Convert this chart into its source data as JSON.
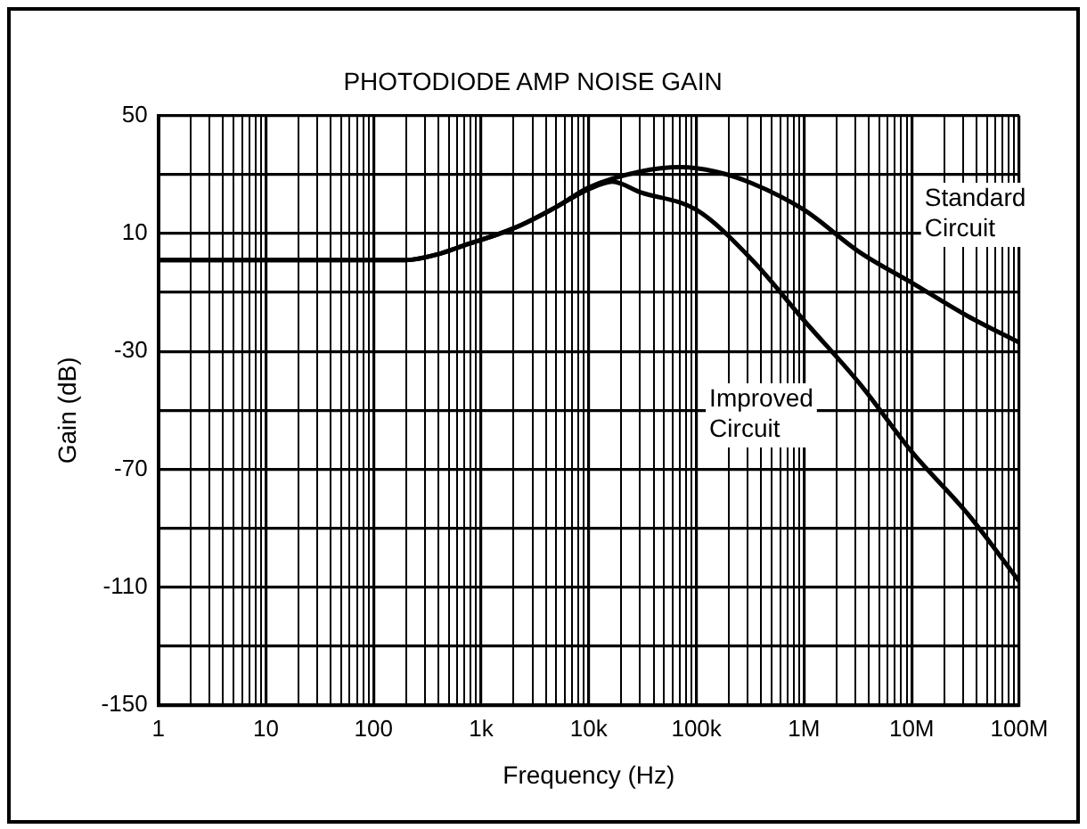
{
  "chart_data": {
    "type": "line",
    "title": "PHOTODIODE AMP NOISE GAIN",
    "xlabel": "Frequency (Hz)",
    "ylabel": "Gain (dB)",
    "log": "x",
    "grid": true,
    "legend": false,
    "marker": "none",
    "line_style": "solid",
    "xlim": [
      1,
      100000000
    ],
    "xticks": [
      1,
      10,
      100,
      {
        "value": 1000,
        "label": "1k"
      },
      {
        "value": 10000,
        "label": "10k"
      },
      {
        "value": 100000,
        "label": "100k"
      },
      {
        "value": 1000000,
        "label": "1M"
      },
      {
        "value": 10000000,
        "label": "10M"
      },
      {
        "value": 100000000,
        "label": "100M"
      }
    ],
    "ylim": [
      -150,
      50
    ],
    "yticks": [
      -150,
      {
        "value": -130,
        "label": null
      },
      -110,
      {
        "value": -90,
        "label": null
      },
      -70,
      {
        "value": -50,
        "label": null
      },
      -30,
      {
        "value": -10,
        "label": null
      },
      10,
      {
        "value": 30,
        "label": null
      },
      50
    ],
    "series": [
      {
        "name": "Standard Circuit",
        "color": "#000000",
        "x": [
          1,
          10,
          100,
          200,
          400,
          700,
          1500,
          2400,
          5000,
          10000,
          30000,
          71000,
          150000,
          330000,
          1000000,
          3300000,
          10000000,
          33000000,
          100000000
        ],
        "values": [
          1,
          1,
          1,
          1,
          3,
          6,
          10,
          13,
          19,
          25.6,
          31,
          32.5,
          31,
          27,
          18,
          3.6,
          -6.7,
          -18,
          -27
        ]
      },
      {
        "name": "Improved Circuit",
        "color": "#000000",
        "x": [
          1,
          10,
          100,
          200,
          400,
          700,
          1500,
          2400,
          5000,
          10000,
          16600,
          30000,
          100000,
          330000,
          1000000,
          3300000,
          10000000,
          33000000,
          100000000
        ],
        "values": [
          1,
          1,
          1,
          1,
          3,
          6,
          10,
          13,
          19,
          25,
          27.6,
          24,
          18,
          1,
          -19.5,
          -41,
          -64,
          -85,
          -108
        ]
      }
    ]
  }
}
